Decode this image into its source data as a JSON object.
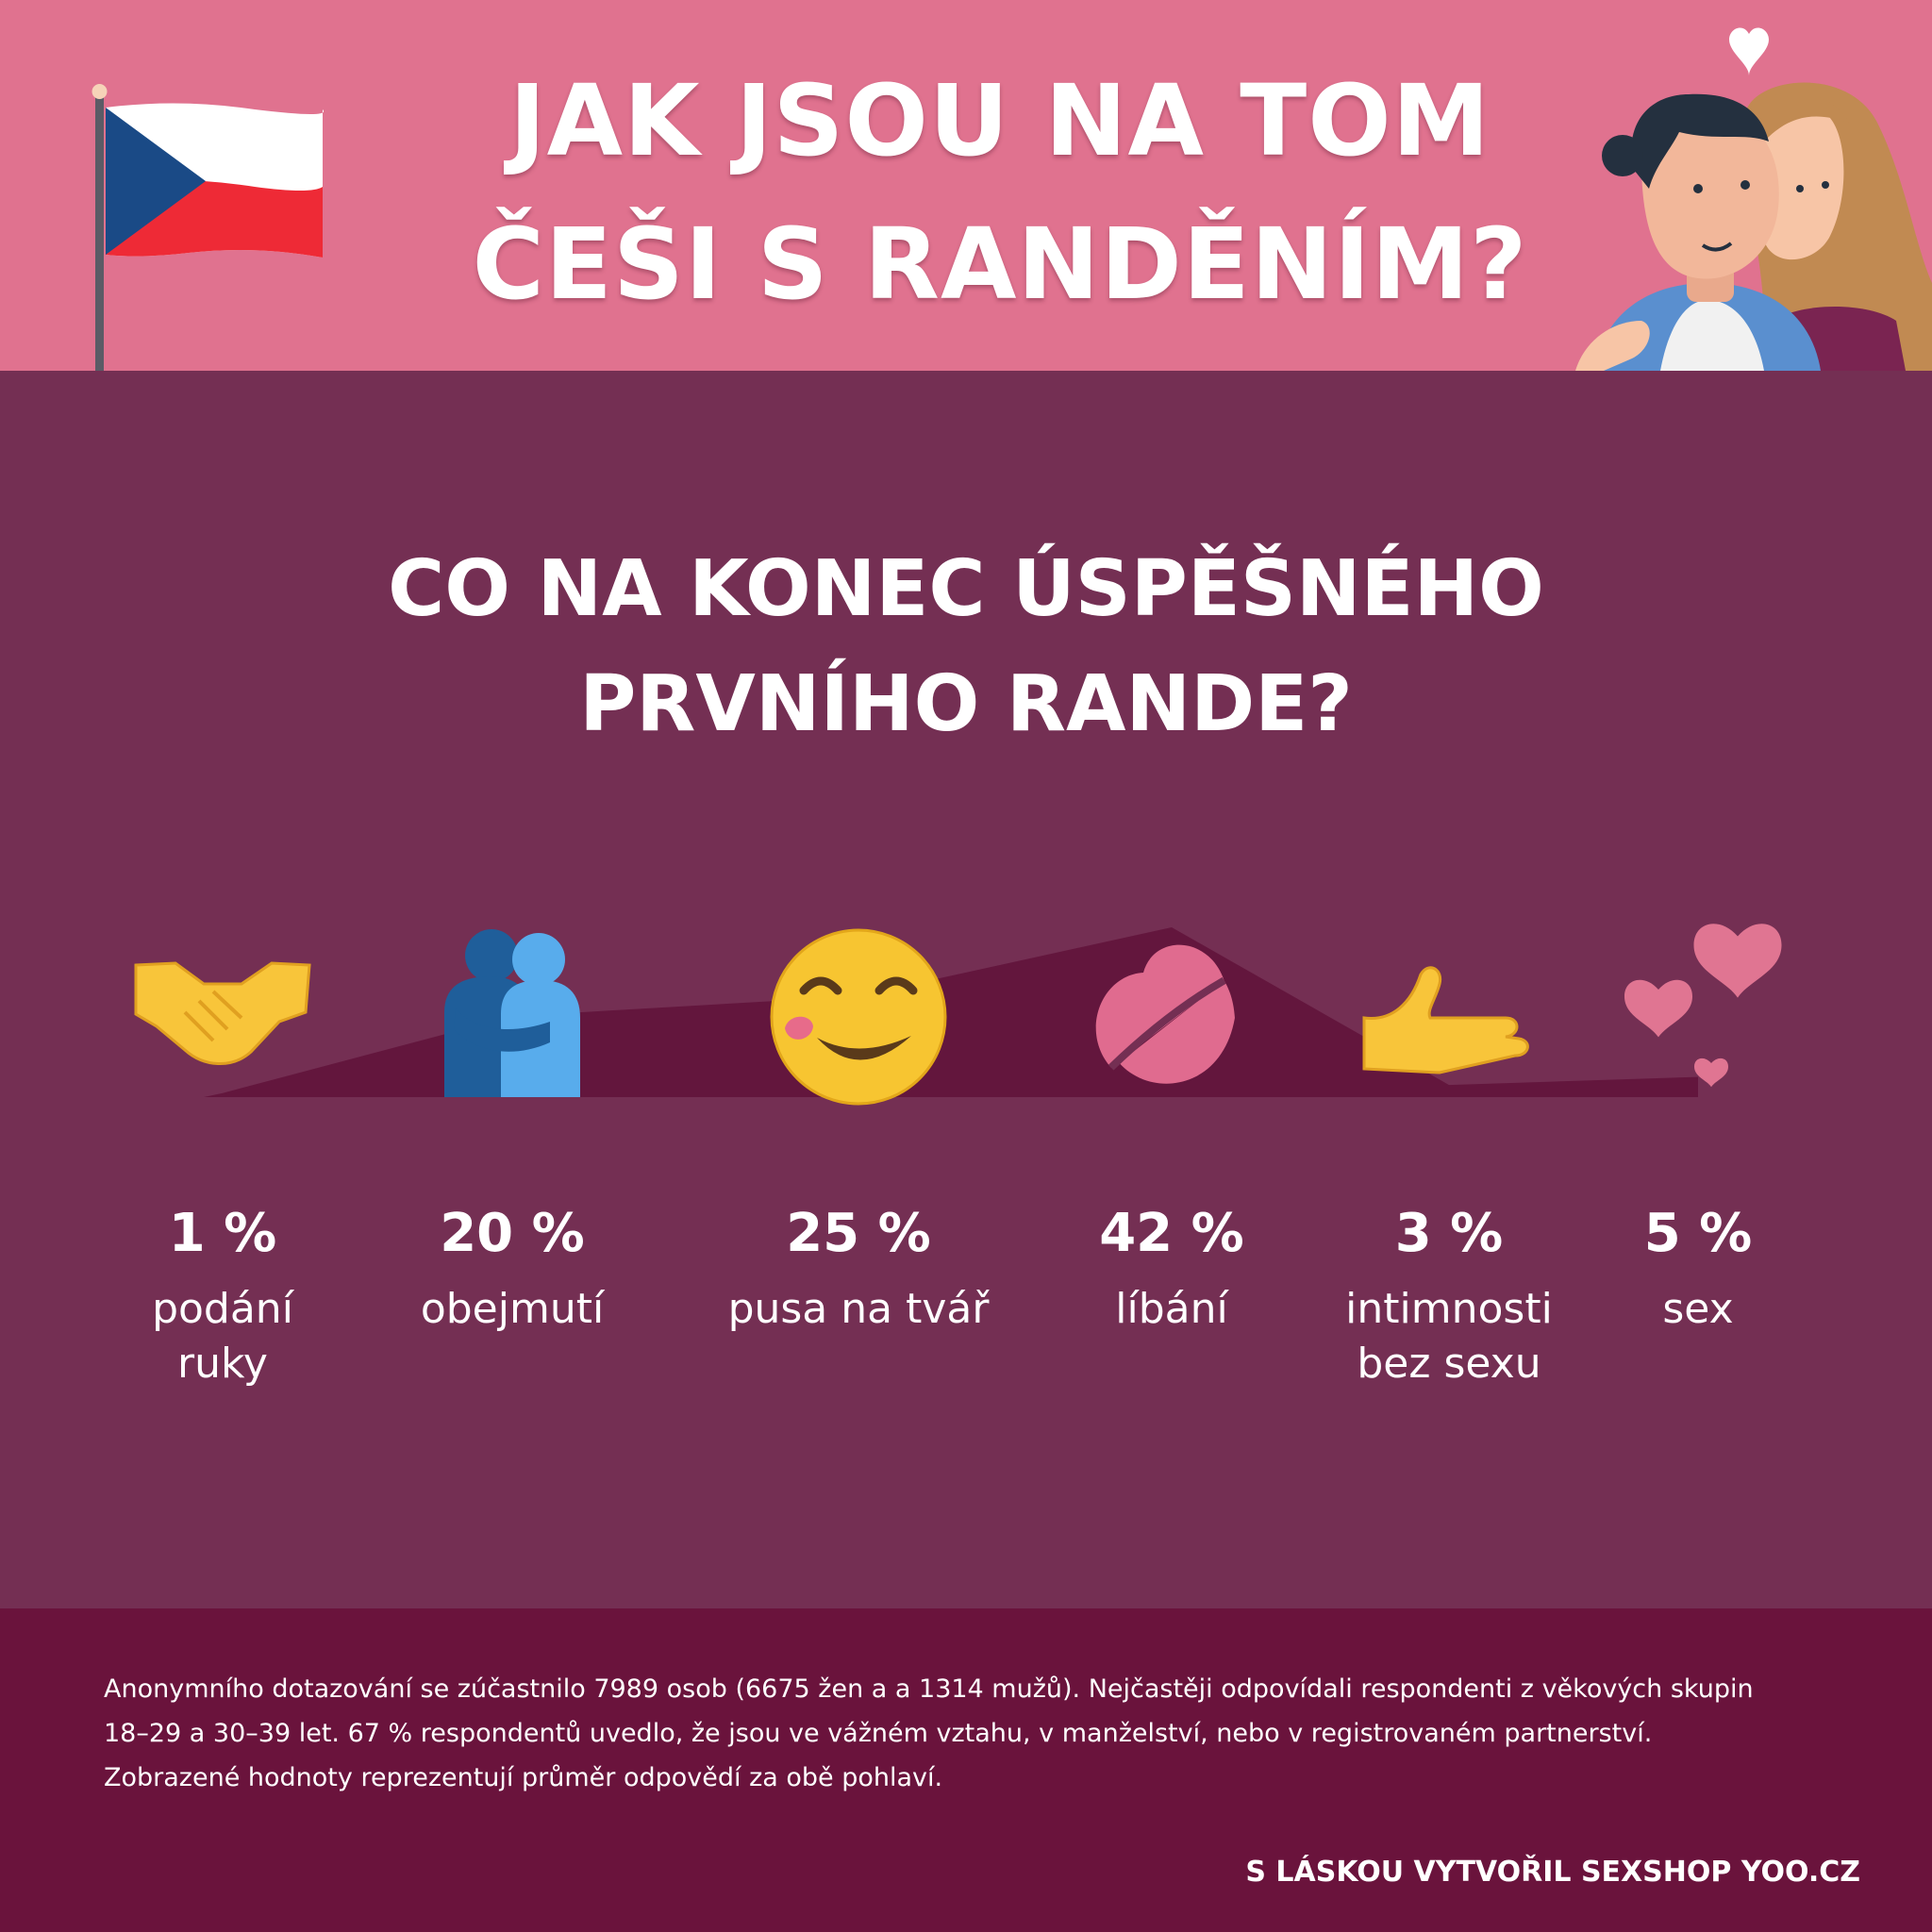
{
  "header": {
    "title_lines": [
      "JAK JSOU NA TOM",
      "ČEŠI S RANDĚNÍM?"
    ]
  },
  "colors": {
    "header_bg": "#e0728f",
    "main_bg": "#742f53",
    "footer_bg": "#6a133c",
    "mountain": "#63163d",
    "text": "#ffffff"
  },
  "chart_data": {
    "type": "area",
    "title_lines": [
      "CO NA KONEC ÚSPĚŠNÉHO",
      "PRVNÍHO RANDE?"
    ],
    "unit": "%",
    "ylim": [
      0,
      42
    ],
    "items": [
      {
        "value": 1,
        "label_text": "1 %",
        "label_lines": [
          "podání",
          "ruky"
        ],
        "icon": "handshake-icon"
      },
      {
        "value": 20,
        "label_text": "20 %",
        "label_lines": [
          "obejmutí"
        ],
        "icon": "people-hugging-icon"
      },
      {
        "value": 25,
        "label_text": "25 %",
        "label_lines": [
          "pusa na tvář"
        ],
        "icon": "kissed-smiling-face-icon"
      },
      {
        "value": 42,
        "label_text": "42 %",
        "label_lines": [
          "líbání"
        ],
        "icon": "kiss-mark-icon"
      },
      {
        "value": 3,
        "label_text": "3 %",
        "label_lines": [
          "intimnosti",
          "bez sexu"
        ],
        "icon": "open-palm-hand-icon"
      },
      {
        "value": 5,
        "label_text": "5 %",
        "label_lines": [
          "sex"
        ],
        "icon": "floating-hearts-icon"
      }
    ]
  },
  "footer": {
    "note_lines": [
      "Anonymního dotazování se zúčastnilo 7989 osob (6675 žen a a 1314 mužů). Nejčastěji odpovídali respondenti z věkových skupin",
      "18–29 a 30–39 let. 67 % respondentů uvedlo, že jsou ve vážném vztahu, v manželství, nebo v registrovaném partnerství.",
      "Zobrazené hodnoty reprezentují průměr odpovědí za obě pohlaví."
    ],
    "credit": "S LÁSKOU VYTVOŘIL SEXSHOP YOO.CZ"
  }
}
